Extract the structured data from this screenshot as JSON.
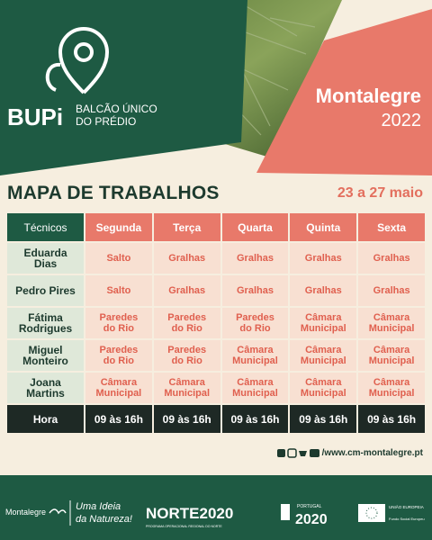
{
  "header": {
    "logo_title": "BUPi",
    "logo_subtitle": [
      "BALCÃO ÚNICO",
      "DO PRÉDIO"
    ],
    "place": "Montalegre",
    "year": "2022"
  },
  "title": "MAPA DE TRABALHOS",
  "date_range": "23 a 27 maio",
  "table": {
    "columns": [
      "Técnicos",
      "Segunda",
      "Terça",
      "Quarta",
      "Quinta",
      "Sexta"
    ],
    "rows": [
      [
        "Eduarda Dias",
        "Salto",
        "Gralhas",
        "Gralhas",
        "Gralhas",
        "Gralhas"
      ],
      [
        "Pedro Pires",
        "Salto",
        "Gralhas",
        "Gralhas",
        "Gralhas",
        "Gralhas"
      ],
      [
        "Fátima Rodrigues",
        "Paredes do Rio",
        "Paredes do Rio",
        "Paredes do Rio",
        "Câmara Municipal",
        "Câmara Municipal"
      ],
      [
        "Miguel Monteiro",
        "Paredes do Rio",
        "Paredes do Rio",
        "Câmara Municipal",
        "Câmara Municipal",
        "Câmara Municipal"
      ],
      [
        "Joana Martins",
        "Câmara Municipal",
        "Câmara Municipal",
        "Câmara Municipal",
        "Câmara Municipal",
        "Câmara Municipal"
      ]
    ],
    "footer_row": [
      "Hora",
      "09 às 16h",
      "09 às 16h",
      "09 às 16h",
      "09 às 16h",
      "09 às 16h"
    ]
  },
  "website": "/www.cm-montalegre.pt",
  "partners": {
    "municipality": "Montalegre",
    "slogan": [
      "Uma Ideia",
      "da Natureza!"
    ],
    "norte": "NORTE2020",
    "norte_sub": "PROGRAMA OPERACIONAL REGIONAL DO NORTE",
    "portugal": "PORTUGAL",
    "portugal_year": "2020",
    "eu": "UNIÃO EUROPEIA",
    "eu_fund": "Fundo Social Europeu"
  }
}
